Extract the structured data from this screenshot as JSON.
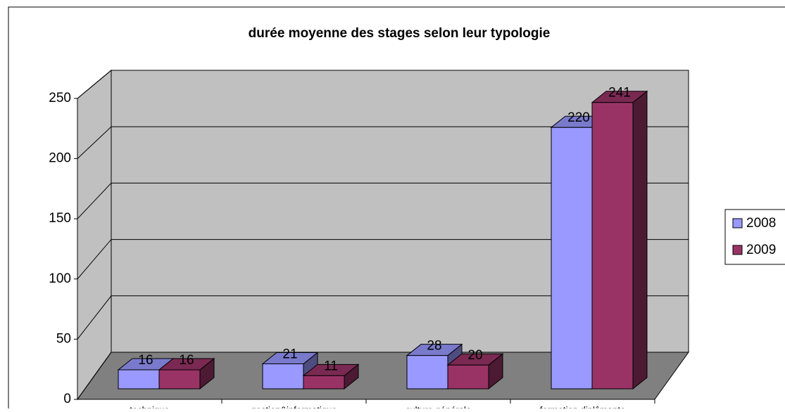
{
  "chart_data": {
    "type": "bar3d",
    "title": "durée moyenne des stages selon leur typologie",
    "categories": [
      "technique",
      "gestion&informatique",
      "culture générale",
      "formation diplômante"
    ],
    "series": [
      {
        "name": "2008",
        "color": "#9999ff",
        "values": [
          16,
          21,
          28,
          220
        ]
      },
      {
        "name": "2009",
        "color": "#993366",
        "values": [
          16,
          11,
          20,
          241
        ]
      }
    ],
    "ylim": [
      0,
      250
    ],
    "yticks": [
      0,
      50,
      100,
      150,
      200,
      250
    ],
    "grid": true,
    "legend": "right"
  }
}
